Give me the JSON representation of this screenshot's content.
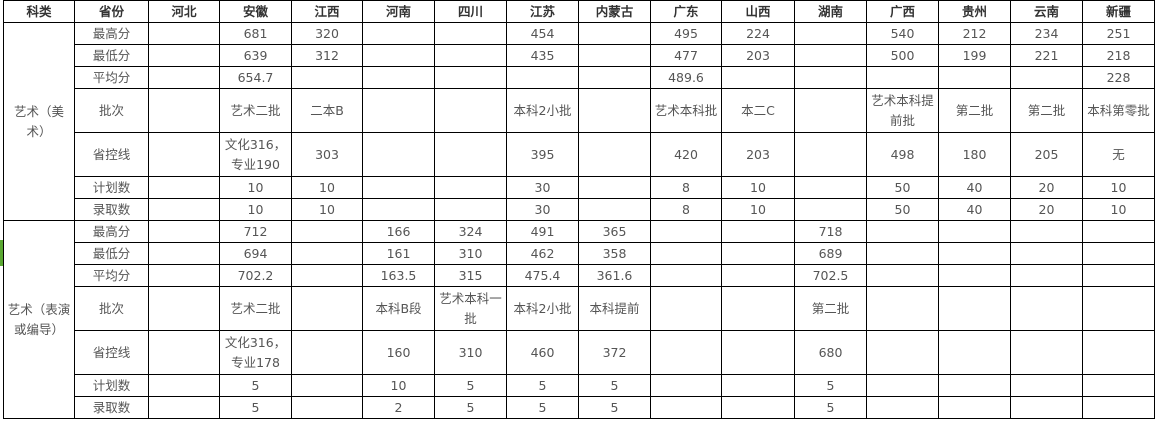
{
  "header": [
    "科类",
    "省份",
    "河北",
    "安徽",
    "江西",
    "河南",
    "四川",
    "江苏",
    "内蒙古",
    "广东",
    "山西",
    "湖南",
    "广西",
    "贵州",
    "云南",
    "新疆"
  ],
  "groups": [
    {
      "category": "艺术（美术）",
      "rows": [
        {
          "label": "最高分",
          "values": [
            "",
            "681",
            "320",
            "",
            "",
            "454",
            "",
            "495",
            "224",
            "",
            "540",
            "212",
            "234",
            "251"
          ]
        },
        {
          "label": "最低分",
          "values": [
            "",
            "639",
            "312",
            "",
            "",
            "435",
            "",
            "477",
            "203",
            "",
            "500",
            "199",
            "221",
            "218"
          ]
        },
        {
          "label": "平均分",
          "values": [
            "",
            "654.7",
            "",
            "",
            "",
            "",
            "",
            "489.6",
            "",
            "",
            "",
            "",
            "",
            "228"
          ]
        },
        {
          "label": "批次",
          "values": [
            "",
            "艺术二批",
            "二本B",
            "",
            "",
            "本科2小批",
            "",
            "艺术本科批",
            "本二C",
            "",
            "艺术本科提前批",
            "第二批",
            "第二批",
            "本科第零批"
          ]
        },
        {
          "label": "省控线",
          "values": [
            "",
            "文化316，专业190",
            "303",
            "",
            "",
            "395",
            "",
            "420",
            "203",
            "",
            "498",
            "180",
            "205",
            "无"
          ]
        },
        {
          "label": "计划数",
          "values": [
            "",
            "10",
            "10",
            "",
            "",
            "30",
            "",
            "8",
            "10",
            "",
            "50",
            "40",
            "20",
            "10"
          ]
        },
        {
          "label": "录取数",
          "values": [
            "",
            "10",
            "10",
            "",
            "",
            "30",
            "",
            "8",
            "10",
            "",
            "50",
            "40",
            "20",
            "10"
          ]
        }
      ]
    },
    {
      "category": "艺术（表演或编导）",
      "rows": [
        {
          "label": "最高分",
          "values": [
            "",
            "712",
            "",
            "166",
            "324",
            "491",
            "365",
            "",
            "",
            "718",
            "",
            "",
            "",
            ""
          ]
        },
        {
          "label": "最低分",
          "values": [
            "",
            "694",
            "",
            "161",
            "310",
            "462",
            "358",
            "",
            "",
            "689",
            "",
            "",
            "",
            ""
          ]
        },
        {
          "label": "平均分",
          "values": [
            "",
            "702.2",
            "",
            "163.5",
            "315",
            "475.4",
            "361.6",
            "",
            "",
            "702.5",
            "",
            "",
            "",
            ""
          ]
        },
        {
          "label": "批次",
          "values": [
            "",
            "艺术二批",
            "",
            "本科B段",
            "艺术本科一批",
            "本科2小批",
            "本科提前",
            "",
            "",
            "第二批",
            "",
            "",
            "",
            ""
          ]
        },
        {
          "label": "省控线",
          "values": [
            "",
            "文化316，专业178",
            "",
            "160",
            "310",
            "460",
            "372",
            "",
            "",
            "680",
            "",
            "",
            "",
            ""
          ]
        },
        {
          "label": "计划数",
          "values": [
            "",
            "5",
            "",
            "10",
            "5",
            "5",
            "5",
            "",
            "",
            "5",
            "",
            "",
            "",
            ""
          ]
        },
        {
          "label": "录取数",
          "values": [
            "",
            "5",
            "",
            "2",
            "5",
            "5",
            "5",
            "",
            "",
            "5",
            "",
            "",
            "",
            ""
          ]
        }
      ]
    }
  ]
}
